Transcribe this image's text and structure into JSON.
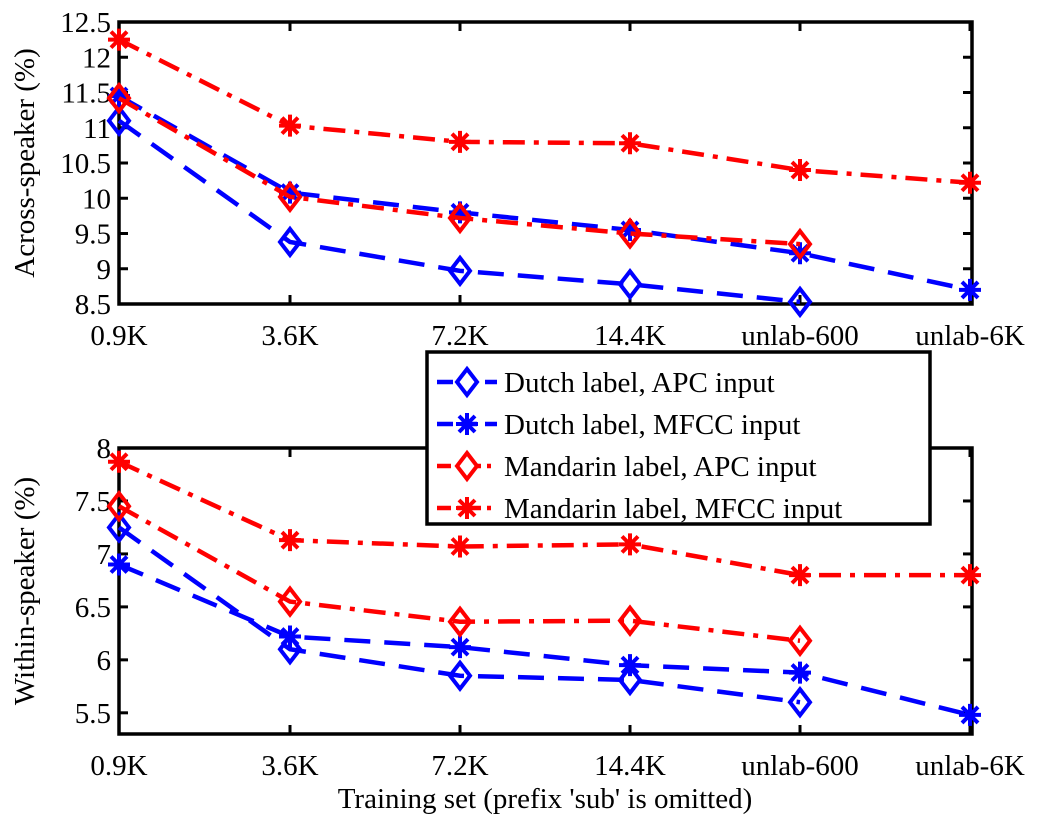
{
  "xlabel": "Training set (prefix 'sub' is omitted)",
  "legend": [
    {
      "label": "Dutch label, APC input",
      "color": "#0000ff",
      "marker": "diamond",
      "dash": "long-dash"
    },
    {
      "label": "Dutch label, MFCC input",
      "color": "#0000ff",
      "marker": "asterisk",
      "dash": "long-dash"
    },
    {
      "label": "Mandarin label, APC input",
      "color": "#ff0000",
      "marker": "diamond",
      "dash": "dash-dot"
    },
    {
      "label": "Mandarin label, MFCC input",
      "color": "#ff0000",
      "marker": "asterisk",
      "dash": "dash-dot"
    }
  ],
  "chart_data": [
    {
      "type": "line",
      "ylabel": "Across-speaker (%)",
      "categories": [
        "0.9K",
        "3.6K",
        "7.2K",
        "14.4K",
        "unlab-600",
        "unlab-6K"
      ],
      "ylim": [
        8.5,
        12.5
      ],
      "yticks": [
        "8.5",
        "9",
        "9.5",
        "10",
        "10.5",
        "11",
        "11.5",
        "12",
        "12.5"
      ],
      "series": [
        {
          "name": "Dutch label, APC input",
          "values": [
            11.1,
            9.38,
            8.97,
            8.78,
            8.53,
            null
          ]
        },
        {
          "name": "Dutch label, MFCC input",
          "values": [
            11.45,
            10.08,
            9.8,
            9.55,
            9.22,
            8.7
          ]
        },
        {
          "name": "Mandarin label, APC input",
          "values": [
            11.42,
            10.02,
            9.72,
            9.5,
            9.35,
            null
          ]
        },
        {
          "name": "Mandarin label, MFCC input",
          "values": [
            12.25,
            11.03,
            10.8,
            10.78,
            10.4,
            10.22
          ]
        }
      ]
    },
    {
      "type": "line",
      "ylabel": "Within-speaker (%)",
      "categories": [
        "0.9K",
        "3.6K",
        "7.2K",
        "14.4K",
        "unlab-600",
        "unlab-6K"
      ],
      "ylim": [
        5.3,
        8
      ],
      "yticks": [
        "5.5",
        "6",
        "6.5",
        "7",
        "7.5",
        "8"
      ],
      "series": [
        {
          "name": "Dutch label, APC input",
          "values": [
            7.25,
            6.1,
            5.85,
            5.81,
            5.6,
            null
          ]
        },
        {
          "name": "Dutch label, MFCC input",
          "values": [
            6.9,
            6.22,
            6.12,
            5.95,
            5.88,
            5.48
          ]
        },
        {
          "name": "Mandarin label, APC input",
          "values": [
            7.45,
            6.55,
            6.36,
            6.37,
            6.18,
            null
          ]
        },
        {
          "name": "Mandarin label, MFCC input",
          "values": [
            7.87,
            7.13,
            7.07,
            7.09,
            6.8,
            6.8
          ]
        }
      ]
    }
  ]
}
